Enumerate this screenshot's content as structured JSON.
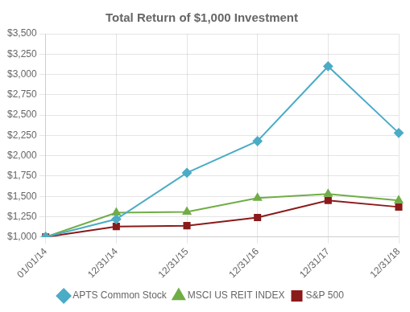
{
  "chart_data": {
    "type": "line",
    "title": "Total Return of $1,000 Investment",
    "categories": [
      "01/01/14",
      "12/31/14",
      "12/31/15",
      "12/31/16",
      "12/31/17",
      "12/31/18"
    ],
    "series": [
      {
        "name": "APTS Common Stock",
        "values": [
          1000,
          1220,
          1790,
          2180,
          3100,
          2280
        ],
        "color": "#4bacc6",
        "marker": "diamond"
      },
      {
        "name": "MSCI US REIT INDEX",
        "values": [
          1000,
          1300,
          1310,
          1480,
          1530,
          1450
        ],
        "color": "#70ad47",
        "marker": "triangle"
      },
      {
        "name": "S&P 500",
        "values": [
          1000,
          1130,
          1140,
          1240,
          1450,
          1370
        ],
        "color": "#8b1a1a",
        "marker": "square"
      }
    ],
    "ylim": [
      1000,
      3500
    ],
    "yticks": [
      {
        "value": 1000,
        "label": "$1,000"
      },
      {
        "value": 1250,
        "label": "$1,250"
      },
      {
        "value": 1500,
        "label": "$1,500"
      },
      {
        "value": 1750,
        "label": "$1,750"
      },
      {
        "value": 2000,
        "label": "$2,000"
      },
      {
        "value": 2250,
        "label": "$2,250"
      },
      {
        "value": 2500,
        "label": "$2,500"
      },
      {
        "value": 2750,
        "label": "$2,750"
      },
      {
        "value": 3000,
        "label": "$3,000"
      },
      {
        "value": 3250,
        "label": "$3,250"
      },
      {
        "value": 3500,
        "label": "$3,500"
      }
    ],
    "grid": true,
    "legend": "bottom"
  }
}
